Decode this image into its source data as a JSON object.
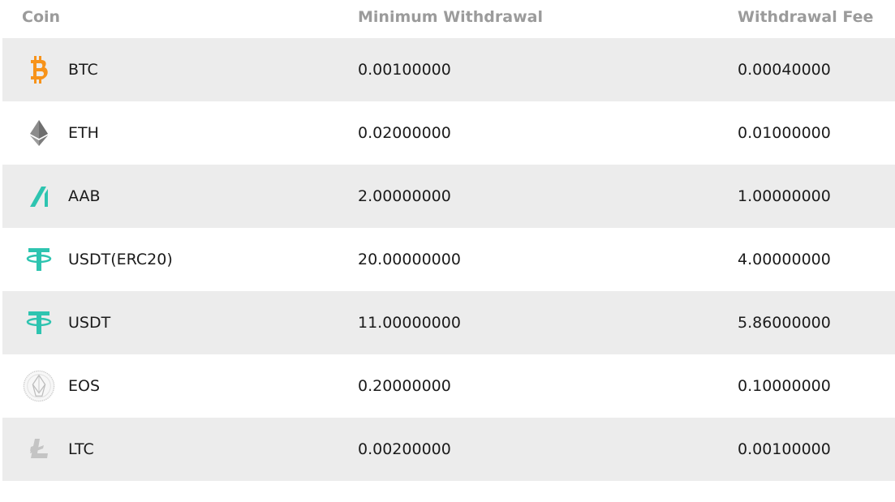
{
  "header": {
    "coin": "Coin",
    "min_withdrawal": "Minimum Withdrawal",
    "withdrawal_fee": "Withdrawal Fee"
  },
  "rows": [
    {
      "icon": "bitcoin-icon",
      "coin": "BTC",
      "min": "0.00100000",
      "fee": "0.00040000",
      "color": "#f7931a"
    },
    {
      "icon": "ethereum-icon",
      "coin": "ETH",
      "min": "0.02000000",
      "fee": "0.01000000",
      "color": "#8c8c8c"
    },
    {
      "icon": "aab-icon",
      "coin": "AAB",
      "min": "2.00000000",
      "fee": "1.00000000",
      "color": "#2ec4b0"
    },
    {
      "icon": "tether-icon",
      "coin": "USDT(ERC20)",
      "min": "20.00000000",
      "fee": "4.00000000",
      "color": "#2ec4b0"
    },
    {
      "icon": "tether-icon",
      "coin": "USDT",
      "min": "11.00000000",
      "fee": "5.86000000",
      "color": "#2ec4b0"
    },
    {
      "icon": "eos-icon",
      "coin": "EOS",
      "min": "0.20000000",
      "fee": "0.10000000",
      "color": "#bdbdbd"
    },
    {
      "icon": "litecoin-icon",
      "coin": "LTC",
      "min": "0.00200000",
      "fee": "0.00100000",
      "color": "#c4c4c4"
    }
  ]
}
